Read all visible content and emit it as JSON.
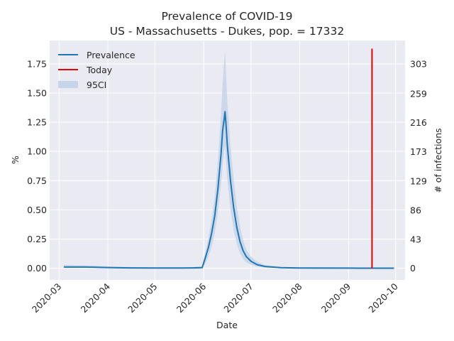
{
  "chart_data": {
    "type": "line",
    "title_line1": "Prevalence of COVID-19",
    "title_line2": "US - Massachusetts - Dukes, pop. = 17332",
    "xlabel": "Date",
    "ylabel": "%",
    "ylabel_right": "# of infections",
    "x_tick_labels": [
      "2020-03",
      "2020-04",
      "2020-05",
      "2020-06",
      "2020-07",
      "2020-08",
      "2020-09",
      "2020-10"
    ],
    "x_tick_dates": [
      "2020-03-01",
      "2020-04-01",
      "2020-05-01",
      "2020-06-01",
      "2020-07-01",
      "2020-08-01",
      "2020-09-01",
      "2020-10-01"
    ],
    "xlim": [
      "2020-02-24",
      "2020-10-07"
    ],
    "y_tick_labels": [
      "0.00",
      "0.25",
      "0.50",
      "0.75",
      "1.00",
      "1.25",
      "1.50",
      "1.75"
    ],
    "y_ticks": [
      0,
      0.25,
      0.5,
      0.75,
      1.0,
      1.25,
      1.5,
      1.75
    ],
    "ylim": [
      -0.1,
      1.95
    ],
    "y2_tick_labels": [
      "0",
      "43",
      "86",
      "129",
      "173",
      "216",
      "259",
      "303"
    ],
    "y2_ticks": [
      0,
      43,
      86,
      129,
      173,
      216,
      259,
      303
    ],
    "y2lim": [
      -17.3,
      338
    ],
    "grid": true,
    "legend_position": "top-left",
    "legend": [
      "Prevalence",
      "Today",
      "95CI"
    ],
    "colors": {
      "prevalence": "#1f77b4",
      "today": "#e60000",
      "ci": "#c5d5ea",
      "background": "#eaeaf2",
      "grid": "#ffffff"
    },
    "series": [
      {
        "name": "Prevalence",
        "points": [
          [
            "2020-03-04",
            0.01
          ],
          [
            "2020-03-18",
            0.01
          ],
          [
            "2020-04-01",
            0.006
          ],
          [
            "2020-04-15",
            0.003
          ],
          [
            "2020-05-01",
            0.002
          ],
          [
            "2020-05-15",
            0.002
          ],
          [
            "2020-05-25",
            0.003
          ],
          [
            "2020-05-31",
            0.005
          ],
          [
            "2020-06-02",
            0.09
          ],
          [
            "2020-06-04",
            0.18
          ],
          [
            "2020-06-06",
            0.3
          ],
          [
            "2020-06-08",
            0.45
          ],
          [
            "2020-06-10",
            0.68
          ],
          [
            "2020-06-12",
            0.98
          ],
          [
            "2020-06-13",
            1.18
          ],
          [
            "2020-06-14",
            1.28
          ],
          [
            "2020-06-14T12:00",
            1.34
          ],
          [
            "2020-06-15",
            1.26
          ],
          [
            "2020-06-16",
            1.05
          ],
          [
            "2020-06-18",
            0.75
          ],
          [
            "2020-06-20",
            0.52
          ],
          [
            "2020-06-22",
            0.35
          ],
          [
            "2020-06-24",
            0.23
          ],
          [
            "2020-06-26",
            0.15
          ],
          [
            "2020-06-28",
            0.1
          ],
          [
            "2020-07-01",
            0.06
          ],
          [
            "2020-07-05",
            0.03
          ],
          [
            "2020-07-10",
            0.015
          ],
          [
            "2020-07-20",
            0.005
          ],
          [
            "2020-08-01",
            0.002
          ],
          [
            "2020-09-01",
            0.001
          ],
          [
            "2020-09-30",
            0.0
          ]
        ]
      },
      {
        "name": "Today",
        "points": [
          [
            "2020-09-16",
            0.0
          ],
          [
            "2020-09-16",
            1.88
          ]
        ]
      },
      {
        "name": "95CI",
        "points": [
          [
            "2020-03-04",
            0.005,
            0.03
          ],
          [
            "2020-03-18",
            0.004,
            0.025
          ],
          [
            "2020-04-01",
            0.002,
            0.015
          ],
          [
            "2020-04-15",
            0.001,
            0.01
          ],
          [
            "2020-05-01",
            0.001,
            0.006
          ],
          [
            "2020-05-15",
            0.001,
            0.005
          ],
          [
            "2020-05-25",
            0.001,
            0.008
          ],
          [
            "2020-05-31",
            0.001,
            0.02
          ],
          [
            "2020-06-02",
            0.04,
            0.14
          ],
          [
            "2020-06-04",
            0.1,
            0.26
          ],
          [
            "2020-06-06",
            0.18,
            0.42
          ],
          [
            "2020-06-08",
            0.3,
            0.62
          ],
          [
            "2020-06-10",
            0.48,
            0.92
          ],
          [
            "2020-06-12",
            0.72,
            1.32
          ],
          [
            "2020-06-13",
            0.88,
            1.58
          ],
          [
            "2020-06-14",
            1.0,
            1.78
          ],
          [
            "2020-06-14T12:00",
            1.05,
            1.87
          ],
          [
            "2020-06-15",
            0.95,
            1.72
          ],
          [
            "2020-06-16",
            0.76,
            1.42
          ],
          [
            "2020-06-18",
            0.5,
            1.05
          ],
          [
            "2020-06-20",
            0.33,
            0.76
          ],
          [
            "2020-06-22",
            0.21,
            0.53
          ],
          [
            "2020-06-24",
            0.13,
            0.36
          ],
          [
            "2020-06-26",
            0.08,
            0.24
          ],
          [
            "2020-06-28",
            0.05,
            0.16
          ],
          [
            "2020-07-01",
            0.03,
            0.1
          ],
          [
            "2020-07-05",
            0.012,
            0.055
          ],
          [
            "2020-07-10",
            0.006,
            0.028
          ],
          [
            "2020-07-20",
            0.002,
            0.01
          ],
          [
            "2020-08-01",
            0.001,
            0.004
          ],
          [
            "2020-09-01",
            0.0,
            0.002
          ],
          [
            "2020-09-30",
            0.0,
            0.001
          ]
        ]
      }
    ]
  }
}
